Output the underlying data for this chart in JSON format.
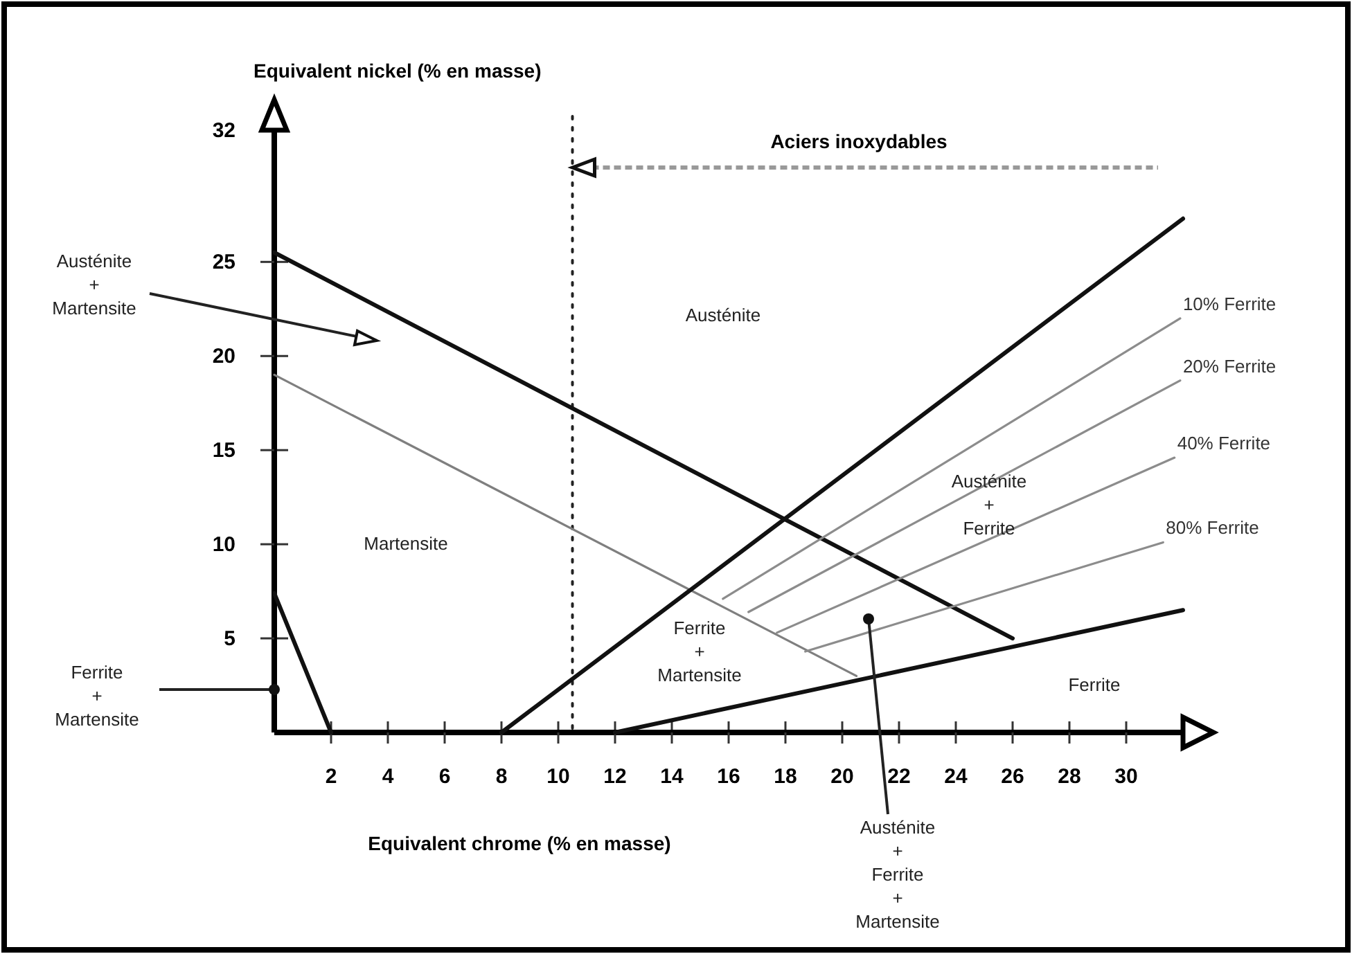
{
  "chart_data": {
    "type": "line",
    "xlabel": "Equivalent chrome (% en masse)",
    "ylabel": "Equivalent nickel (% en masse)",
    "xlim": [
      0,
      32
    ],
    "ylim": [
      0,
      32
    ],
    "xticks": [
      2,
      4,
      6,
      8,
      10,
      12,
      14,
      16,
      18,
      20,
      22,
      24,
      26,
      28,
      30
    ],
    "yticks": [
      5,
      10,
      15,
      20,
      25,
      32
    ],
    "series": [
      {
        "color": "#111111",
        "x": [
          0,
          26
        ],
        "values": [
          25.5,
          5
        ]
      },
      {
        "color": "#7f7f7f",
        "x": [
          0,
          20.5
        ],
        "values": [
          19,
          3
        ]
      },
      {
        "color": "#111111",
        "x": [
          0,
          2
        ],
        "values": [
          7.4,
          0
        ]
      },
      {
        "color": "#111111",
        "x": [
          8,
          32
        ],
        "values": [
          0,
          27.3
        ]
      },
      {
        "color": "#111111",
        "x": [
          12,
          32
        ],
        "values": [
          0,
          6.5
        ]
      },
      {
        "name": "10% Ferrite",
        "color": "#8c8c8c",
        "x": [
          15.8,
          31.9
        ],
        "values": [
          7.1,
          22
        ]
      },
      {
        "name": "20% Ferrite",
        "color": "#8c8c8c",
        "x": [
          16.7,
          31.9
        ],
        "values": [
          6.4,
          18.7
        ]
      },
      {
        "name": "40% Ferrite",
        "color": "#8c8c8c",
        "x": [
          17.7,
          31.7
        ],
        "values": [
          5.3,
          14.6
        ]
      },
      {
        "name": "80% Ferrite",
        "color": "#8c8c8c",
        "x": [
          18.7,
          31.3
        ],
        "values": [
          4.3,
          10.1
        ]
      }
    ],
    "ref_lines": [
      {
        "axis": "x",
        "value": 10.5,
        "line_style": "dotted",
        "color": "#222222"
      }
    ],
    "annotations": [
      "Aciers inoxydables",
      "Austénite",
      "Martensite",
      "Austénite\n+\nFerrite",
      "Ferrite\n+\nMartensite",
      "Ferrite",
      "Austénite\n+\nMartensite",
      "Ferrite\n+\nMartensite",
      "Austénite\n+\nFerrite\n+\nMartensite"
    ]
  }
}
